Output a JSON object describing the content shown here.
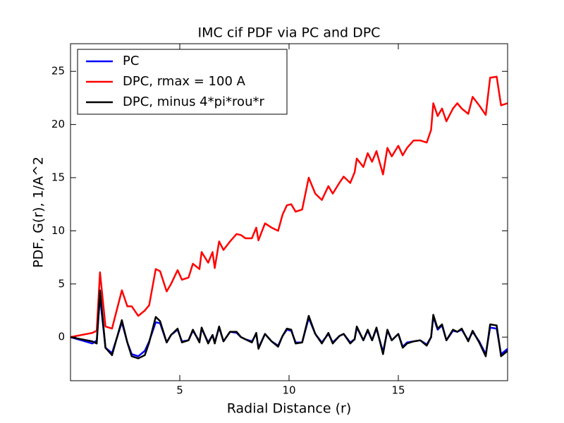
{
  "chart_data": {
    "type": "line",
    "title": "IMC cif PDF via PC and DPC",
    "xlabel": "Radial Distance (r)",
    "ylabel": "PDF, G(r), 1/A^2",
    "x": [
      0,
      1,
      1.2,
      1.35,
      1.6,
      1.9,
      2.35,
      2.6,
      2.8,
      3.1,
      3.4,
      3.6,
      3.9,
      4.1,
      4.4,
      4.6,
      4.9,
      5.1,
      5.4,
      5.6,
      5.9,
      6.0,
      6.3,
      6.5,
      6.6,
      6.8,
      7.0,
      7.3,
      7.6,
      7.8,
      8.0,
      8.3,
      8.5,
      8.6,
      8.9,
      9.2,
      9.5,
      9.7,
      9.9,
      10.1,
      10.3,
      10.6,
      10.9,
      11.2,
      11.5,
      11.8,
      12.0,
      12.3,
      12.5,
      12.8,
      13.0,
      13.1,
      13.4,
      13.6,
      13.8,
      14.0,
      14.3,
      14.5,
      14.7,
      15.0,
      15.2,
      15.4,
      15.7,
      16.0,
      16.3,
      16.5,
      16.6,
      16.8,
      17.0,
      17.2,
      17.5,
      17.7,
      17.9,
      18.2,
      18.4,
      18.7,
      19.0,
      19.2,
      19.5,
      19.7,
      20
    ],
    "series": [
      {
        "name": "PC",
        "color": "#0000ff",
        "values": [
          0,
          -0.6,
          -0.3,
          3.8,
          -1.0,
          -1.5,
          1.4,
          -0.5,
          -1.6,
          -1.8,
          -1.3,
          -0.4,
          1.4,
          1.3,
          -0.5,
          0.2,
          0.7,
          -0.4,
          -0.3,
          0.6,
          -0.4,
          0.8,
          -0.5,
          0.2,
          -0.5,
          0.9,
          -0.4,
          0.5,
          0.4,
          0.0,
          -0.2,
          -0.4,
          0.3,
          -1.0,
          0.3,
          -0.4,
          -0.8,
          0.1,
          0.7,
          0.6,
          -0.5,
          -0.5,
          1.8,
          0.3,
          -0.5,
          0.3,
          -0.5,
          0.1,
          0.3,
          -0.5,
          -0.2,
          0.9,
          -0.3,
          0.6,
          -0.3,
          0.8,
          -1.4,
          0.6,
          -0.3,
          0.3,
          -0.9,
          -0.5,
          -0.4,
          -0.3,
          -0.7,
          0.0,
          1.9,
          0.7,
          1.1,
          -0.3,
          0.6,
          0.5,
          0.7,
          -0.3,
          0.5,
          -0.4,
          -1.6,
          0.9,
          0.8,
          -1.6,
          -1.1
        ]
      },
      {
        "name": "DPC, rmax = 100 A",
        "color": "#ff0000",
        "values": [
          0,
          0.4,
          0.6,
          6.1,
          1.0,
          0.8,
          4.4,
          2.9,
          2.9,
          2.0,
          2.5,
          3.0,
          6.4,
          6.2,
          4.3,
          5.0,
          6.3,
          5.4,
          5.6,
          6.9,
          6.4,
          8.0,
          7.0,
          8.0,
          6.5,
          9.0,
          8.2,
          9.0,
          9.7,
          9.6,
          9.3,
          9.3,
          10.3,
          9.1,
          10.7,
          10.3,
          10.0,
          11.5,
          12.4,
          12.5,
          11.8,
          12.0,
          15.0,
          13.5,
          12.9,
          14.2,
          13.5,
          14.5,
          15.1,
          14.5,
          15.5,
          16.8,
          16.0,
          17.3,
          16.5,
          17.5,
          15.3,
          17.8,
          17.0,
          18.0,
          17.1,
          17.8,
          18.5,
          18.5,
          18.3,
          19.5,
          22.0,
          20.8,
          21.5,
          20.3,
          21.5,
          22.0,
          21.5,
          21.0,
          22.6,
          21.8,
          20.9,
          24.4,
          24.5,
          21.8,
          22.0
        ]
      },
      {
        "name": "DPC, minus 4*pi*rou*r",
        "color": "#000000",
        "values": [
          0,
          -0.4,
          -0.6,
          4.4,
          -1.0,
          -1.7,
          1.6,
          -0.5,
          -1.8,
          -2.0,
          -1.7,
          -0.5,
          1.9,
          1.5,
          -0.5,
          0.2,
          0.8,
          -0.5,
          -0.3,
          0.7,
          -0.5,
          0.9,
          -0.6,
          0.2,
          -0.6,
          1.0,
          -0.4,
          0.5,
          0.5,
          0.0,
          -0.2,
          -0.5,
          0.4,
          -1.1,
          0.3,
          -0.4,
          -0.9,
          0.1,
          0.8,
          0.7,
          -0.6,
          -0.5,
          2.0,
          0.3,
          -0.6,
          0.4,
          -0.6,
          0.1,
          0.3,
          -0.6,
          -0.2,
          1.0,
          -0.3,
          0.7,
          -0.3,
          0.9,
          -1.6,
          0.7,
          -0.3,
          0.3,
          -1.0,
          -0.6,
          -0.4,
          -0.3,
          -0.8,
          0.0,
          2.1,
          0.8,
          1.2,
          -0.3,
          0.7,
          0.5,
          0.8,
          -0.4,
          0.6,
          -0.5,
          -1.8,
          1.2,
          1.1,
          -1.8,
          -1.3
        ]
      }
    ],
    "xlim": [
      0,
      20
    ],
    "ylim": [
      -4.1,
      27.6
    ],
    "xticks": [
      5,
      10,
      15
    ],
    "yticks": [
      0,
      5,
      10,
      15,
      20,
      25
    ],
    "grid": false,
    "legend": "upper left"
  }
}
